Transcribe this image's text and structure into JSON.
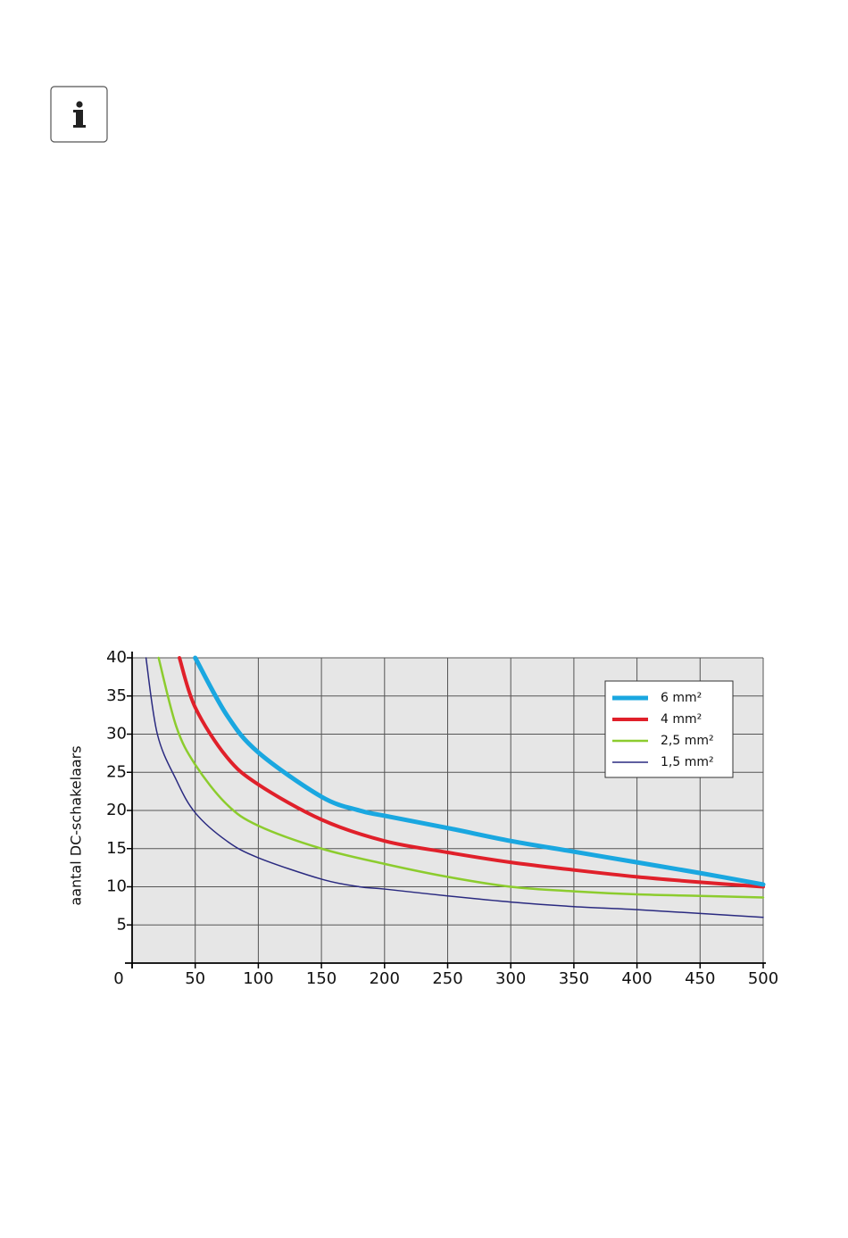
{
  "chart_data": {
    "type": "line",
    "y_label": "aantal DC-schakelaars",
    "xlim": [
      0,
      500
    ],
    "xticks": [
      0,
      50,
      100,
      150,
      200,
      250,
      300,
      350,
      400,
      450,
      500
    ],
    "ylim": [
      0,
      40
    ],
    "yticks": [
      5,
      10,
      15,
      20,
      25,
      30,
      35,
      40
    ],
    "grid": true,
    "legend": "upper right",
    "series": [
      {
        "name": "6 mm²",
        "color": "#1aa7e0",
        "width": 5,
        "x": [
          50,
          75,
          100,
          150,
          180,
          200,
          250,
          300,
          350,
          400,
          450,
          500
        ],
        "values": [
          40,
          32.5,
          27.6,
          21.8,
          20,
          19.3,
          17.7,
          16,
          14.6,
          13.2,
          11.8,
          10.3
        ]
      },
      {
        "name": "4 mm²",
        "color": "#e0202a",
        "width": 4,
        "x": [
          37.5,
          50,
          75,
          100,
          150,
          200,
          250,
          300,
          350,
          400,
          450,
          500
        ],
        "values": [
          40,
          33.5,
          27,
          23.4,
          18.8,
          16,
          14.5,
          13.2,
          12.2,
          11.3,
          10.6,
          10
        ]
      },
      {
        "name": "2,5 mm²",
        "color": "#8ccc2e",
        "width": 2.5,
        "x": [
          21,
          35,
          50,
          75,
          100,
          150,
          200,
          250,
          300,
          350,
          400,
          450,
          500
        ],
        "values": [
          40,
          31,
          26,
          20.8,
          18,
          15,
          13,
          11.3,
          10,
          9.4,
          9,
          8.8,
          8.6
        ]
      },
      {
        "name": "1,5 mm²",
        "color": "#2a2a80",
        "width": 1.5,
        "x": [
          11,
          20,
          35,
          50,
          75,
          100,
          150,
          180,
          200,
          250,
          300,
          350,
          400,
          450,
          500
        ],
        "values": [
          40,
          30,
          24,
          19.7,
          16,
          13.8,
          11,
          10,
          9.7,
          8.8,
          8,
          7.4,
          7,
          6.5,
          6
        ]
      }
    ]
  }
}
